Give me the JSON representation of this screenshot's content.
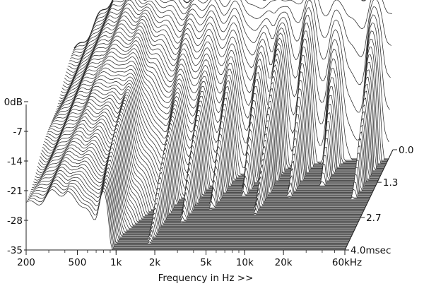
{
  "chart_data": {
    "type": "waterfall",
    "title": "",
    "xlabel": "Frequency in Hz >>",
    "x_scale": "log",
    "x_ticks": [
      {
        "value": 200,
        "label": "200"
      },
      {
        "value": 500,
        "label": "500"
      },
      {
        "value": 1000,
        "label": "1k"
      },
      {
        "value": 2000,
        "label": "2k"
      },
      {
        "value": 5000,
        "label": "5k"
      },
      {
        "value": 10000,
        "label": "10k"
      },
      {
        "value": 20000,
        "label": "20k"
      },
      {
        "value": 60000,
        "label": "60kHz"
      }
    ],
    "x_range": [
      200,
      60000
    ],
    "y_ticks": [
      {
        "value": 0,
        "label": "0dB"
      },
      {
        "value": -7,
        "label": "-7"
      },
      {
        "value": -14,
        "label": "-14"
      },
      {
        "value": -21,
        "label": "-21"
      },
      {
        "value": -28,
        "label": "-28"
      },
      {
        "value": -35,
        "label": "-35"
      }
    ],
    "y_range": [
      -35,
      0
    ],
    "time_ticks": [
      {
        "value": 0.0,
        "label": "0.0"
      },
      {
        "value": 1.3,
        "label": "1.3"
      },
      {
        "value": 2.7,
        "label": "2.7"
      },
      {
        "value": 4.0,
        "label": "4.0msec"
      }
    ],
    "time_range": [
      0,
      4.0
    ],
    "slice_count": 60,
    "colors": {
      "floor": "#808080",
      "floor_line": "#a8a8a8",
      "trace": "#2a2a2a"
    }
  }
}
